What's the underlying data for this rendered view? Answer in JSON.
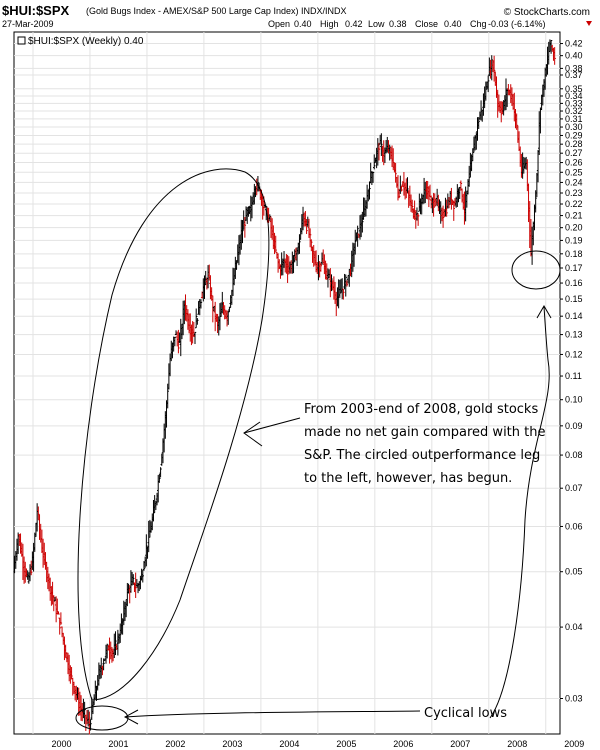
{
  "header": {
    "symbol": "$HUI:$SPX",
    "description": "(Gold Bugs Index - AMEX/S&P 500 Large Cap Index) INDX/INDX",
    "date": "27-Mar-2009",
    "open_label": "Open",
    "open": "0.40",
    "high_label": "High",
    "high": "0.42",
    "low_label": "Low",
    "low": "0.38",
    "close_label": "Close",
    "close": "0.40",
    "chg_label": "Chg",
    "chg": "-0.03 (-6.14%)",
    "brand": "© StockCharts.com"
  },
  "legend": {
    "label": "$HUI:$SPX (Weekly) 0.40"
  },
  "annotations": {
    "note": [
      "From 2003-end of 2008, gold stocks",
      "made no net gain compared with the",
      "S&P. The circled outperformance leg",
      "to the left, however, has begun."
    ],
    "lows": "Cyclical lows"
  },
  "colors": {
    "up": "#000000",
    "down": "#cc0000",
    "grid": "#e3e3e3",
    "ink": "#000000"
  },
  "chart_data": {
    "type": "line",
    "scale": "log",
    "frequency": "weekly",
    "title": "$HUI:$SPX",
    "legend_position": "top-left",
    "grid": true,
    "ylim": [
      0.026,
      0.44
    ],
    "x_ticks": [
      "2000",
      "2001",
      "2002",
      "2003",
      "2004",
      "2005",
      "2006",
      "2007",
      "2008",
      "2009"
    ],
    "y_ticks": [
      "0.42",
      "0.40",
      "0.38",
      "0.37",
      "0.35",
      "0.34",
      "0.33",
      "0.32",
      "0.31",
      "0.30",
      "0.29",
      "0.28",
      "0.27",
      "0.26",
      "0.25",
      "0.24",
      "0.23",
      "0.22",
      "0.21",
      "0.20",
      "0.19",
      "0.18",
      "0.17",
      "0.16",
      "0.15",
      "0.14",
      "0.13",
      "0.12",
      "0.11",
      "0.10",
      "0.09",
      "0.08",
      "0.07",
      "0.06",
      "0.05",
      "0.04",
      "0.03"
    ],
    "series": [
      {
        "values": [
          [
            "1999-09",
            0.05
          ],
          [
            "1999-10",
            0.058
          ],
          [
            "1999-11",
            0.052
          ],
          [
            "1999-12",
            0.048
          ],
          [
            "2000-01",
            0.052
          ],
          [
            "2000-02",
            0.064
          ],
          [
            "2000-03",
            0.055
          ],
          [
            "2000-04",
            0.05
          ],
          [
            "2000-05",
            0.046
          ],
          [
            "2000-06",
            0.043
          ],
          [
            "2000-07",
            0.04
          ],
          [
            "2000-08",
            0.036
          ],
          [
            "2000-09",
            0.033
          ],
          [
            "2000-10",
            0.031
          ],
          [
            "2000-11",
            0.029
          ],
          [
            "2000-12",
            0.028
          ],
          [
            "2001-01",
            0.027
          ],
          [
            "2001-02",
            0.03
          ],
          [
            "2001-03",
            0.033
          ],
          [
            "2001-04",
            0.035
          ],
          [
            "2001-05",
            0.037
          ],
          [
            "2001-06",
            0.036
          ],
          [
            "2001-07",
            0.038
          ],
          [
            "2001-08",
            0.041
          ],
          [
            "2001-09",
            0.046
          ],
          [
            "2001-10",
            0.048
          ],
          [
            "2001-11",
            0.047
          ],
          [
            "2001-12",
            0.049
          ],
          [
            "2002-01",
            0.055
          ],
          [
            "2002-02",
            0.06
          ],
          [
            "2002-03",
            0.067
          ],
          [
            "2002-04",
            0.077
          ],
          [
            "2002-05",
            0.093
          ],
          [
            "2002-06",
            0.118
          ],
          [
            "2002-07",
            0.13
          ],
          [
            "2002-08",
            0.125
          ],
          [
            "2002-09",
            0.147
          ],
          [
            "2002-10",
            0.135
          ],
          [
            "2002-11",
            0.13
          ],
          [
            "2002-12",
            0.145
          ],
          [
            "2003-01",
            0.157
          ],
          [
            "2003-02",
            0.165
          ],
          [
            "2003-03",
            0.145
          ],
          [
            "2003-04",
            0.135
          ],
          [
            "2003-05",
            0.145
          ],
          [
            "2003-06",
            0.14
          ],
          [
            "2003-07",
            0.155
          ],
          [
            "2003-08",
            0.175
          ],
          [
            "2003-09",
            0.195
          ],
          [
            "2003-10",
            0.21
          ],
          [
            "2003-11",
            0.215
          ],
          [
            "2003-12",
            0.24
          ],
          [
            "2004-01",
            0.23
          ],
          [
            "2004-02",
            0.215
          ],
          [
            "2004-03",
            0.205
          ],
          [
            "2004-04",
            0.185
          ],
          [
            "2004-05",
            0.17
          ],
          [
            "2004-06",
            0.175
          ],
          [
            "2004-07",
            0.17
          ],
          [
            "2004-08",
            0.175
          ],
          [
            "2004-09",
            0.185
          ],
          [
            "2004-10",
            0.21
          ],
          [
            "2004-11",
            0.2
          ],
          [
            "2004-12",
            0.18
          ],
          [
            "2005-01",
            0.17
          ],
          [
            "2005-02",
            0.175
          ],
          [
            "2005-03",
            0.165
          ],
          [
            "2005-04",
            0.16
          ],
          [
            "2005-05",
            0.15
          ],
          [
            "2005-06",
            0.155
          ],
          [
            "2005-07",
            0.16
          ],
          [
            "2005-08",
            0.17
          ],
          [
            "2005-09",
            0.19
          ],
          [
            "2005-10",
            0.2
          ],
          [
            "2005-11",
            0.215
          ],
          [
            "2005-12",
            0.24
          ],
          [
            "2006-01",
            0.26
          ],
          [
            "2006-02",
            0.28
          ],
          [
            "2006-03",
            0.27
          ],
          [
            "2006-04",
            0.275
          ],
          [
            "2006-05",
            0.26
          ],
          [
            "2006-06",
            0.23
          ],
          [
            "2006-07",
            0.24
          ],
          [
            "2006-08",
            0.23
          ],
          [
            "2006-09",
            0.215
          ],
          [
            "2006-10",
            0.21
          ],
          [
            "2006-11",
            0.225
          ],
          [
            "2006-12",
            0.235
          ],
          [
            "2007-01",
            0.22
          ],
          [
            "2007-02",
            0.225
          ],
          [
            "2007-03",
            0.21
          ],
          [
            "2007-04",
            0.215
          ],
          [
            "2007-05",
            0.225
          ],
          [
            "2007-06",
            0.22
          ],
          [
            "2007-07",
            0.24
          ],
          [
            "2007-08",
            0.215
          ],
          [
            "2007-09",
            0.245
          ],
          [
            "2007-10",
            0.28
          ],
          [
            "2007-11",
            0.31
          ],
          [
            "2007-12",
            0.33
          ],
          [
            "2008-01",
            0.37
          ],
          [
            "2008-02",
            0.39
          ],
          [
            "2008-03",
            0.33
          ],
          [
            "2008-04",
            0.32
          ],
          [
            "2008-05",
            0.35
          ],
          [
            "2008-06",
            0.34
          ],
          [
            "2008-07",
            0.3
          ],
          [
            "2008-08",
            0.25
          ],
          [
            "2008-09",
            0.26
          ],
          [
            "2008-10",
            0.18
          ],
          [
            "2008-11",
            0.23
          ],
          [
            "2008-12",
            0.33
          ],
          [
            "2009-01",
            0.37
          ],
          [
            "2009-02",
            0.42
          ],
          [
            "2009-03",
            0.4
          ]
        ]
      }
    ]
  }
}
